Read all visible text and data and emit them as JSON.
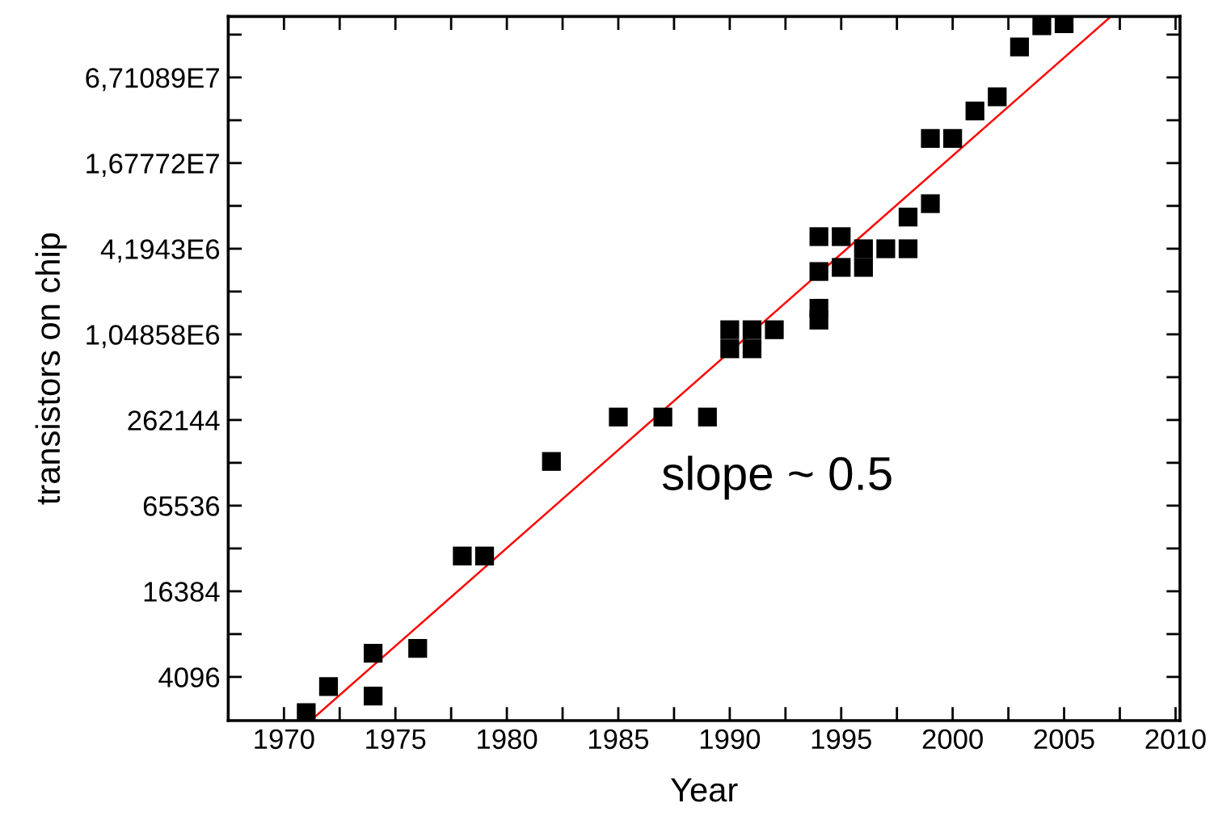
{
  "chart_data": {
    "type": "scatter",
    "xlabel": "Year",
    "ylabel": "transistors on chip",
    "annotations": [
      "slope ~ 0.5"
    ],
    "x": [
      1971,
      1972,
      1974,
      1974,
      1976,
      1978,
      1979,
      1982,
      1985,
      1987,
      1989,
      1990,
      1990,
      1991,
      1991,
      1992,
      1994,
      1994,
      1994,
      1994,
      1995,
      1995,
      1996,
      1996,
      1997,
      1998,
      1998,
      1999,
      1999,
      2000,
      2001,
      2002,
      2003,
      2004,
      2005
    ],
    "series": [
      {
        "color": "#000000",
        "marker": "square",
        "values": [
          2300,
          3500,
          6000,
          3000,
          6500,
          29000,
          29000,
          134000,
          275000,
          275000,
          275000,
          1130000,
          830000,
          1130000,
          830000,
          1130000,
          5100000,
          2900000,
          1600000,
          1320000,
          5100000,
          3100000,
          4190000,
          3100000,
          4190000,
          4190000,
          7000000,
          8700000,
          25000000,
          25000000,
          39000000,
          49000000,
          110000000,
          155000000,
          160000000
        ]
      },
      {
        "type": "line",
        "color": "#ff0000",
        "marker": "none",
        "line_style": "solid",
        "x": [
          1971.2,
          2007.1
        ],
        "values": [
          2020,
          180000000
        ]
      }
    ],
    "log": "y",
    "xlim": [
      1967.5,
      2010.2
    ],
    "xticks": [
      1970,
      {
        "value": 1972.5,
        "label": null
      },
      1975,
      {
        "value": 1977.5,
        "label": null
      },
      1980,
      {
        "value": 1982.5,
        "label": null
      },
      1985,
      {
        "value": 1987.5,
        "label": null
      },
      1990,
      {
        "value": 1992.5,
        "label": null
      },
      1995,
      {
        "value": 1997.5,
        "label": null
      },
      2000,
      {
        "value": 2002.5,
        "label": null
      },
      2005,
      {
        "value": 2007.5,
        "label": null
      },
      2010
    ],
    "ylim": [
      2020,
      180000000
    ],
    "yticks": [
      4096,
      {
        "value": 8192,
        "label": null
      },
      16384,
      {
        "value": 32768,
        "label": null
      },
      65536,
      {
        "value": 131072,
        "label": null
      },
      262144,
      {
        "value": 524288,
        "label": null
      },
      {
        "value": 1048576,
        "label": "1,04858E6"
      },
      {
        "value": 2097152,
        "label": null
      },
      {
        "value": 4194304,
        "label": "4,1943E6"
      },
      {
        "value": 8388608,
        "label": null
      },
      {
        "value": 16777216,
        "label": "1,67772E7"
      },
      {
        "value": 33554432,
        "label": null
      },
      {
        "value": 67108864,
        "label": "6,71089E7"
      },
      {
        "value": 134217728,
        "label": null
      }
    ],
    "grid": false,
    "legend": false
  }
}
